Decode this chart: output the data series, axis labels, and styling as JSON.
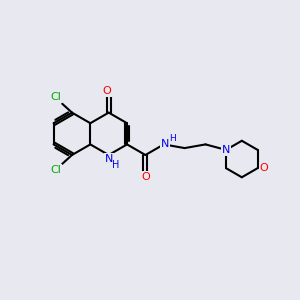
{
  "bg_color": "#e8e8f0",
  "bond_color": "#000000",
  "N_color": "#0000ee",
  "O_color": "#ff0000",
  "Cl_color": "#00aa00",
  "lw": 1.5,
  "figsize": [
    3.0,
    3.0
  ],
  "dpi": 100,
  "xlim": [
    0,
    10
  ],
  "ylim": [
    0,
    10
  ]
}
